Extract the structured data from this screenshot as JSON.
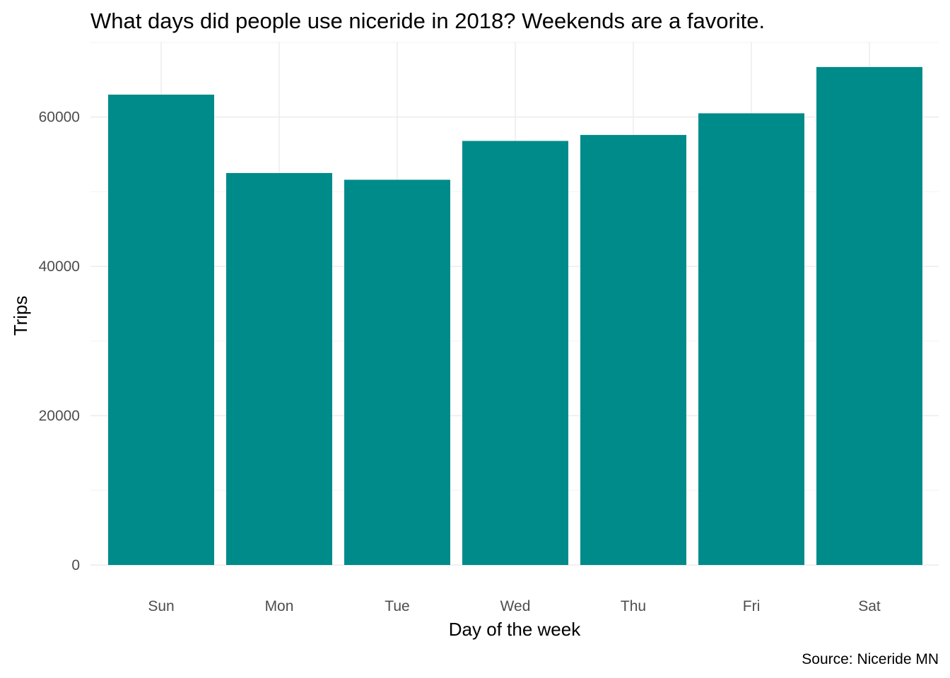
{
  "chart_data": {
    "type": "bar",
    "title": "What days did people use niceride in 2018? Weekends are a favorite.",
    "xlabel": "Day of the week",
    "ylabel": "Trips",
    "caption": "Source: Niceride MN",
    "categories": [
      "Sun",
      "Mon",
      "Tue",
      "Wed",
      "Thu",
      "Fri",
      "Sat"
    ],
    "values": [
      63000,
      52500,
      51600,
      56800,
      57600,
      60500,
      66700
    ],
    "yticks": [
      0,
      20000,
      40000,
      60000
    ],
    "ytick_labels": [
      "0",
      "20000",
      "40000",
      "60000"
    ],
    "ylim": [
      0,
      70000
    ],
    "bar_color": "#008B8B",
    "grid": true,
    "legend": "none"
  }
}
